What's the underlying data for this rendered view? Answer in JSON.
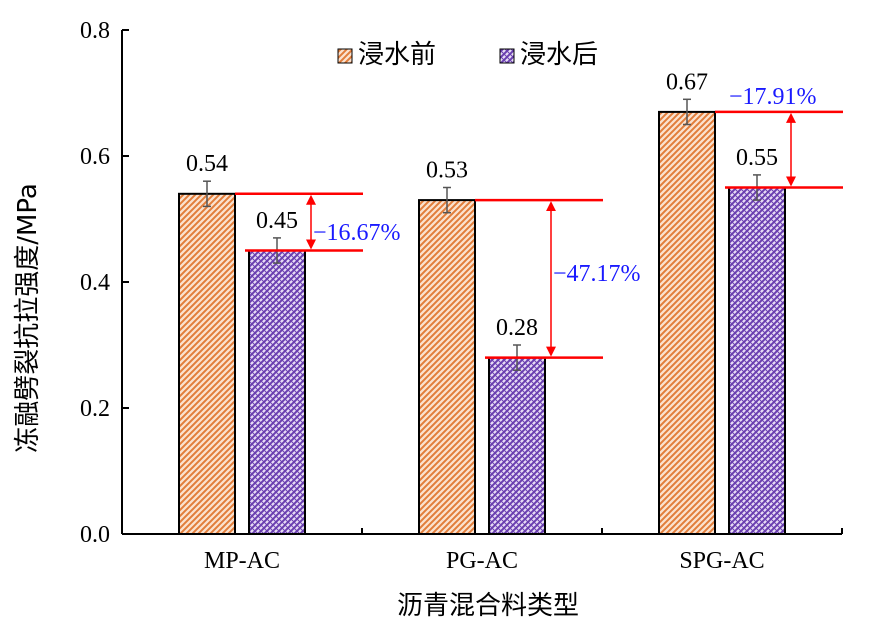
{
  "chart_data": {
    "type": "bar",
    "categories": [
      "MP-AC",
      "PG-AC",
      "SPG-AC"
    ],
    "series": [
      {
        "name": "浸水前",
        "values": [
          0.54,
          0.53,
          0.67
        ],
        "errors": [
          0.02,
          0.02,
          0.02
        ],
        "color": "#e8894a"
      },
      {
        "name": "浸水后",
        "values": [
          0.45,
          0.28,
          0.55
        ],
        "errors": [
          0.02,
          0.02,
          0.02
        ],
        "color": "#7b4fb5"
      }
    ],
    "value_labels": {
      "before": [
        "0.54",
        "0.53",
        "0.67"
      ],
      "after": [
        "0.45",
        "0.28",
        "0.55"
      ]
    },
    "changes": [
      "−16.67%",
      "−47.17%",
      "−17.91%"
    ],
    "ylabel": "冻融劈裂抗拉强度/MPa",
    "xlabel": "沥青混合料类型",
    "ylim": [
      0,
      0.8
    ],
    "yticks": [
      "0.0",
      "0.2",
      "0.4",
      "0.6",
      "0.8"
    ],
    "legend_position": "top",
    "colors": {
      "annotation_line": "#ff0000",
      "annotation_text": "#1a1aff"
    }
  }
}
